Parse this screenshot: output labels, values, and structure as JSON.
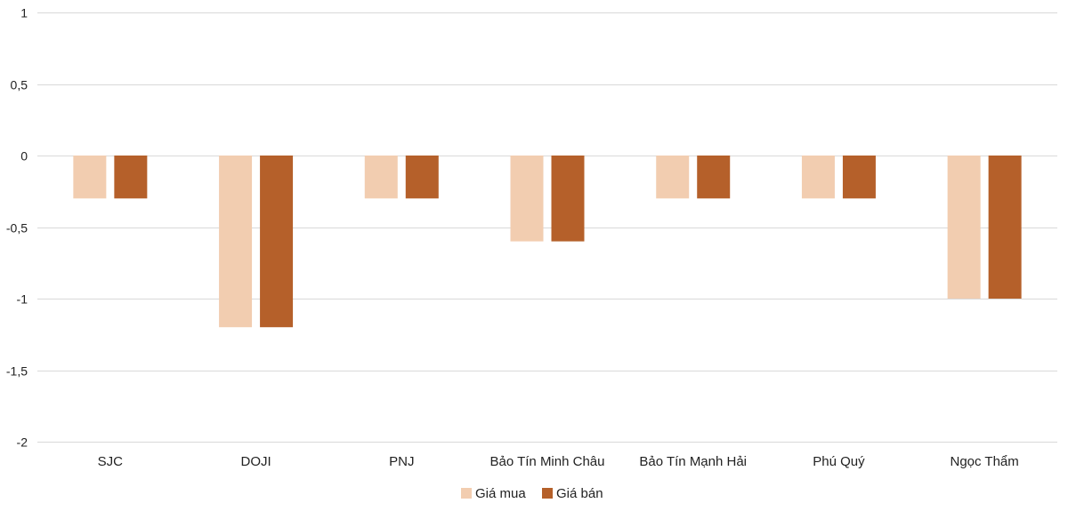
{
  "chart_data": {
    "type": "bar",
    "title": "",
    "xlabel": "",
    "ylabel": "",
    "categories": [
      "SJC",
      "DOJI",
      "PNJ",
      "Bảo Tín Minh Châu",
      "Bảo Tín Mạnh Hải",
      "Phú Quý",
      "Ngọc Thẩm"
    ],
    "series": [
      {
        "name": "Giá mua",
        "color": "#F2CDB0",
        "values": [
          -0.3,
          -1.2,
          -0.3,
          -0.6,
          -0.3,
          -0.3,
          -1.0
        ]
      },
      {
        "name": "Giá bán",
        "color": "#B5602A",
        "values": [
          -0.3,
          -1.2,
          -0.3,
          -0.6,
          -0.3,
          -0.3,
          -1.0
        ]
      }
    ],
    "ylim": [
      -2,
      1
    ],
    "yticks": [
      1,
      0.5,
      0,
      -0.5,
      -1,
      -1.5,
      -2
    ],
    "ytick_labels": [
      "1",
      "0,5",
      "0",
      "-0,5",
      "-1",
      "-1,5",
      "-2"
    ],
    "grid": true,
    "legend_position": "bottom"
  }
}
